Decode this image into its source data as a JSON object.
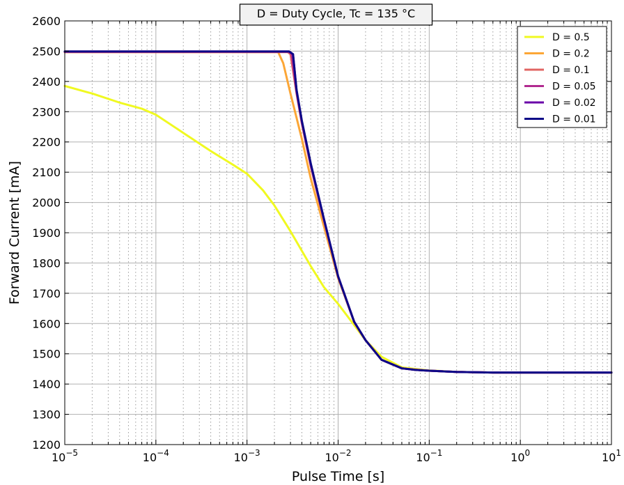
{
  "chart_data": {
    "type": "line",
    "title": "D = Duty Cycle,   Tc = 135 °C",
    "xlabel": "Pulse Time [s]",
    "ylabel": "Forward Current [mA]",
    "xscale": "log",
    "xlim": [
      1e-05,
      10
    ],
    "ylim": [
      1200,
      2600
    ],
    "grid": true,
    "legend_position": "top-right",
    "x_ticks": [
      {
        "base": "10",
        "exp": "−5",
        "value": 1e-05
      },
      {
        "base": "10",
        "exp": "−4",
        "value": 0.0001
      },
      {
        "base": "10",
        "exp": "−3",
        "value": 0.001
      },
      {
        "base": "10",
        "exp": "−2",
        "value": 0.01
      },
      {
        "base": "10",
        "exp": "−1",
        "value": 0.1
      },
      {
        "base": "10",
        "exp": "0",
        "value": 1
      },
      {
        "base": "10",
        "exp": "1",
        "value": 10
      }
    ],
    "y_ticks": [
      "1200",
      "1300",
      "1400",
      "1500",
      "1600",
      "1700",
      "1800",
      "1900",
      "2000",
      "2100",
      "2200",
      "2300",
      "2400",
      "2500",
      "2600"
    ],
    "series": [
      {
        "name": "D = 0.5",
        "color": "#f0f921",
        "x": [
          1e-05,
          2e-05,
          4e-05,
          7e-05,
          0.0001,
          0.0002,
          0.0004,
          0.0007,
          0.001,
          0.0015,
          0.002,
          0.003,
          0.004,
          0.005,
          0.007,
          0.01,
          0.015,
          0.02,
          0.03,
          0.05,
          0.07,
          0.1,
          0.2,
          0.5,
          1,
          10
        ],
        "y": [
          2385,
          2360,
          2330,
          2310,
          2290,
          2230,
          2170,
          2125,
          2095,
          2040,
          1990,
          1905,
          1840,
          1790,
          1720,
          1665,
          1595,
          1545,
          1490,
          1455,
          1450,
          1445,
          1440,
          1438,
          1438,
          1438
        ]
      },
      {
        "name": "D = 0.2",
        "color": "#fca636",
        "x": [
          1e-05,
          0.001,
          0.0022,
          0.0025,
          0.003,
          0.004,
          0.005,
          0.007,
          0.01,
          0.015,
          0.02,
          0.03,
          0.05,
          0.07,
          0.1,
          0.2,
          0.5,
          1,
          10
        ],
        "y": [
          2497,
          2497,
          2497,
          2460,
          2360,
          2210,
          2080,
          1920,
          1750,
          1605,
          1545,
          1480,
          1452,
          1448,
          1444,
          1440,
          1438,
          1438,
          1438
        ]
      },
      {
        "name": "D = 0.1",
        "color": "#e16462",
        "x": [
          1e-05,
          0.001,
          0.0028,
          0.003,
          0.0035,
          0.004,
          0.005,
          0.007,
          0.01,
          0.015,
          0.02,
          0.03,
          0.05,
          0.07,
          0.1,
          0.2,
          0.5,
          1,
          10
        ],
        "y": [
          2497,
          2497,
          2497,
          2490,
          2360,
          2260,
          2120,
          1940,
          1755,
          1605,
          1545,
          1480,
          1452,
          1447,
          1444,
          1440,
          1438,
          1438,
          1438
        ]
      },
      {
        "name": "D = 0.05",
        "color": "#b12a90",
        "x": [
          1e-05,
          0.001,
          0.0029,
          0.0031,
          0.0035,
          0.004,
          0.005,
          0.007,
          0.01,
          0.015,
          0.02,
          0.03,
          0.05,
          0.07,
          0.1,
          0.2,
          0.5,
          1,
          10
        ],
        "y": [
          2498,
          2498,
          2498,
          2490,
          2365,
          2265,
          2125,
          1942,
          1755,
          1605,
          1545,
          1480,
          1452,
          1447,
          1444,
          1440,
          1438,
          1438,
          1438
        ]
      },
      {
        "name": "D = 0.02",
        "color": "#6a00a8",
        "x": [
          1e-05,
          0.001,
          0.0029,
          0.0032,
          0.0035,
          0.004,
          0.005,
          0.007,
          0.01,
          0.015,
          0.02,
          0.03,
          0.05,
          0.07,
          0.1,
          0.2,
          0.5,
          1,
          10
        ],
        "y": [
          2499,
          2499,
          2499,
          2490,
          2370,
          2268,
          2128,
          1944,
          1756,
          1606,
          1545,
          1480,
          1452,
          1447,
          1444,
          1440,
          1438,
          1438,
          1438
        ]
      },
      {
        "name": "D = 0.01",
        "color": "#0d0887",
        "x": [
          1e-05,
          0.001,
          0.0029,
          0.0032,
          0.0035,
          0.004,
          0.005,
          0.007,
          0.01,
          0.015,
          0.02,
          0.03,
          0.05,
          0.07,
          0.1,
          0.2,
          0.5,
          1,
          10
        ],
        "y": [
          2499,
          2499,
          2499,
          2490,
          2372,
          2270,
          2130,
          1945,
          1756,
          1606,
          1545,
          1480,
          1452,
          1447,
          1444,
          1440,
          1438,
          1438,
          1438
        ]
      }
    ]
  }
}
